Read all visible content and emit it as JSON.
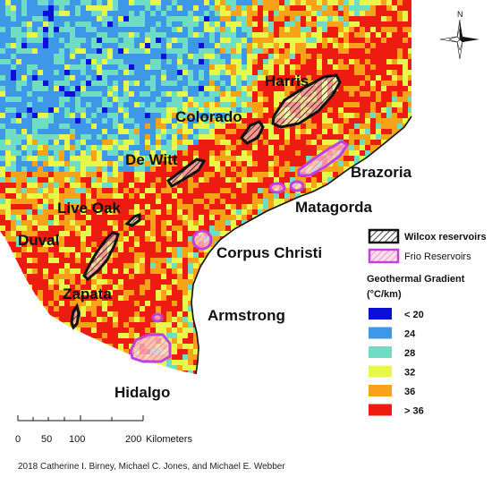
{
  "colors": {
    "lt20": "#0a10d8",
    "c24": "#3f97e8",
    "c28": "#6fdcc4",
    "c32": "#e8f84a",
    "c36": "#f8a21a",
    "gt36": "#ee1c10",
    "wilcox_outline": "#111111",
    "frio_outline": "#c040e0"
  },
  "labels": {
    "harris": "Harris",
    "colorado": "Colorado",
    "dewitt": "De Witt",
    "brazoria": "Brazoria",
    "matagorda": "Matagorda",
    "liveoak": "Live Oak",
    "duval": "Duval",
    "corpus": "Corpus Christi",
    "zapata": "Zapata",
    "armstrong": "Armstrong",
    "hidalgo": "Hidalgo"
  },
  "legend": {
    "wilcox": "Wilcox reservoirs",
    "frio": "Frio Reservoirs",
    "title_line1": "Geothermal Gradient",
    "title_line2": "(°C/km)",
    "bins": [
      "< 20",
      "24",
      "28",
      "32",
      "36",
      "> 36"
    ]
  },
  "north_arrow": {
    "letter": "N",
    "icon": "north-arrow-icon"
  },
  "scale_bar": {
    "ticks": [
      "0",
      "50",
      "100",
      "200"
    ],
    "unit": "Kilometers"
  },
  "credit": "2018 Catherine I. Birney, Michael C. Jones, and Michael E. Webber"
}
